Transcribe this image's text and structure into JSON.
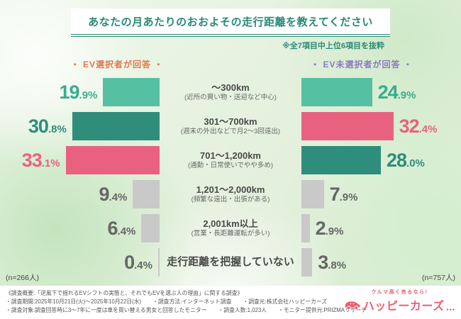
{
  "title": "あなたの月あたりのおおよその走行距離を教えてください",
  "note": "※全7項目中上位6項目を抜粋",
  "left_group": {
    "label": "・ EV選択者が回答 ・",
    "n": "(n=266人)",
    "color": "#e0784f"
  },
  "right_group": {
    "label": "・ EV未選択者が回答 ・",
    "n": "(n=757人)",
    "color": "#8a7abf"
  },
  "palette": {
    "teal": "#55c0a2",
    "dark_teal": "#2f8d7b",
    "pink": "#e8627f",
    "gray": "#c9c9c9",
    "teal_text": "#3aab8c",
    "dark_teal_text": "#2f8d7b",
    "pink_text": "#e8627f",
    "gray_text": "#666666",
    "accent_title": "#2a8a77"
  },
  "chart_data": {
    "type": "bar",
    "layout": "butterfly",
    "unit": "%",
    "categories": [
      "～300km",
      "301～700km",
      "701～1,200km",
      "1,201～2,000km",
      "2,001km以上",
      "走行距離を把握していない"
    ],
    "category_notes": [
      "(近所の買い物・送迎など中心)",
      "(週末の外出などで月2～3回遠出)",
      "(通勤・日常使いでやや多め)",
      "(頻繁な遠出・出張がある)",
      "(営業・長距離運転が多い)",
      ""
    ],
    "series": [
      {
        "name": "EV選択者が回答",
        "values": [
          19.9,
          30.8,
          33.1,
          9.4,
          6.4,
          0.4
        ]
      },
      {
        "name": "EV未選択者が回答",
        "values": [
          24.9,
          32.4,
          28.0,
          7.9,
          2.9,
          3.8
        ]
      }
    ],
    "rows": [
      {
        "label": "～300km",
        "sublabel": "(近所の買い物・送迎など中心)",
        "left": {
          "display": "19.9",
          "color": "teal"
        },
        "right": {
          "display": "24.9",
          "color": "teal"
        }
      },
      {
        "label": "301～700km",
        "sublabel": "(週末の外出などで月2～3回遠出)",
        "left": {
          "display": "30.8",
          "color": "dark_teal"
        },
        "right": {
          "display": "32.4",
          "color": "pink"
        }
      },
      {
        "label": "701～1,200km",
        "sublabel": "(通勤・日常使いでやや多め)",
        "left": {
          "display": "33.1",
          "color": "pink"
        },
        "right": {
          "display": "28.0",
          "color": "dark_teal"
        }
      },
      {
        "label": "1,201～2,000km",
        "sublabel": "(頻繁な遠出・出張がある)",
        "left": {
          "display": "9.4",
          "color": "gray"
        },
        "right": {
          "display": "7.9",
          "color": "gray"
        }
      },
      {
        "label": "2,001km以上",
        "sublabel": "(営業・長距離運転が多い)",
        "left": {
          "display": "6.4",
          "color": "gray"
        },
        "right": {
          "display": "2.9",
          "color": "gray"
        }
      },
      {
        "label": "走行距離を把握していない",
        "sublabel": "",
        "left": {
          "display": "0.4",
          "color": "gray"
        },
        "right": {
          "display": "3.8",
          "color": "gray"
        }
      }
    ]
  },
  "footer": {
    "lines": [
      [
        "《調査概要:「逆風下で揺れるEVシフトの実態と、それでもEVを選ぶ人の理由」に関する調査》"
      ],
      [
        "・調査期間:2025年10月21日(火)～2025年10月22日(水)",
        "・調査方法:インターネット調査",
        "・調査元:株式会社ハッピーカーズ"
      ],
      [
        "・調査対象:調査回答時に3～7年に一度は車を買い替える男女と回答したモニター",
        "・調査人数:1,023人",
        "・モニター提供元:PRIZMAリサーチ"
      ]
    ]
  },
  "logo": {
    "tagline": "クルマ高く売るなら!",
    "name": "ハッピーカーズ",
    "dots": "•••",
    "color": "#ee5d72"
  }
}
